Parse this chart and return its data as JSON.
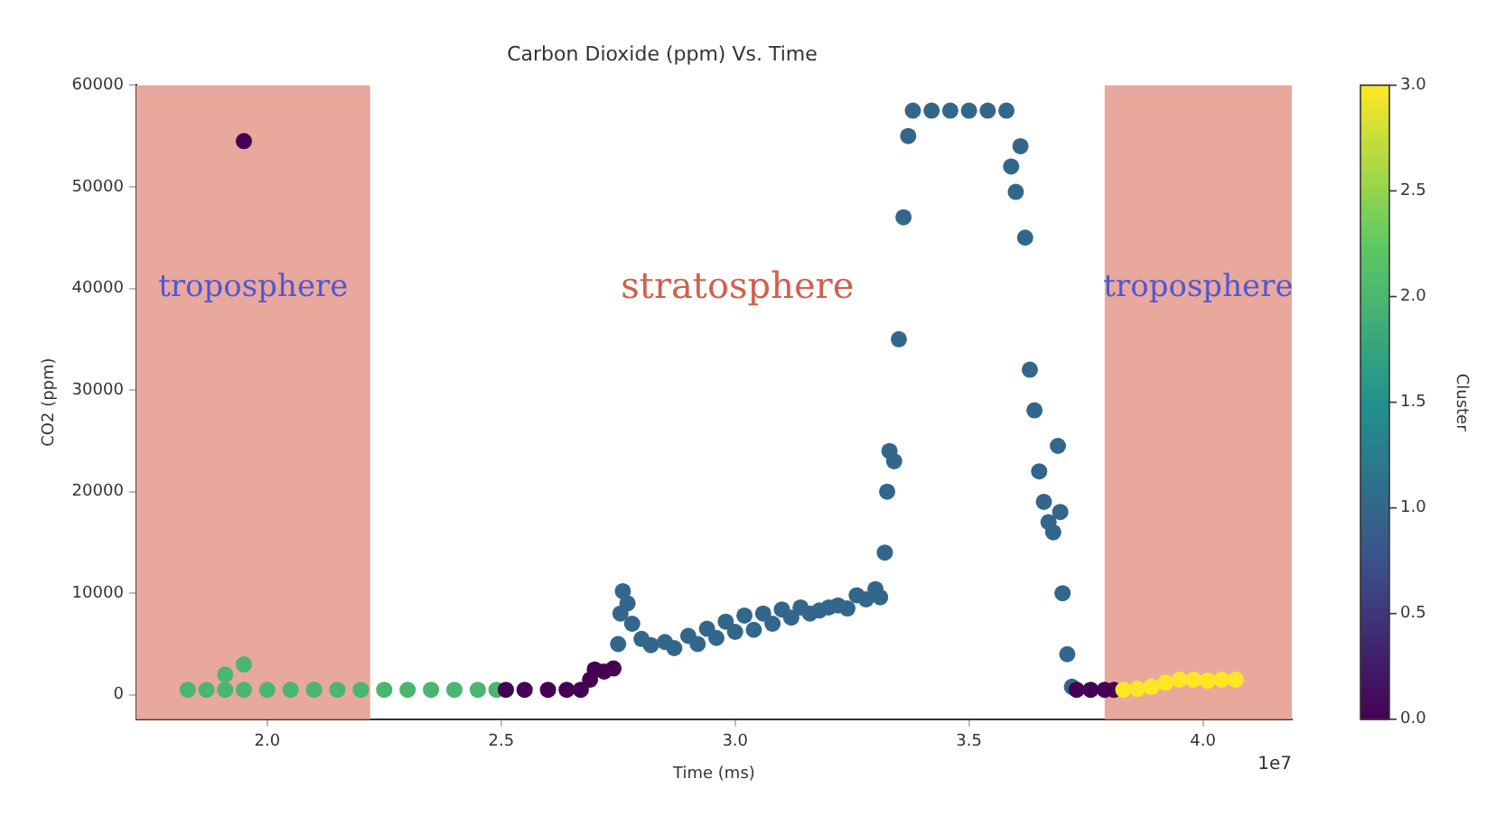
{
  "chart_data": {
    "type": "scatter",
    "title": "Carbon Dioxide (ppm) Vs. Time",
    "xlabel": "Time (ms)",
    "ylabel": "CO2 (ppm)",
    "clabel": "Cluster",
    "x": [
      1.83,
      1.87,
      1.91,
      1.95,
      2.0,
      2.05,
      2.1,
      2.15,
      2.2,
      2.25,
      2.3,
      2.35,
      2.4,
      2.45,
      2.49,
      1.91,
      1.95,
      1.95,
      2.51,
      2.55,
      2.6,
      2.64,
      2.67,
      2.69,
      2.7,
      2.72,
      2.74,
      2.75,
      2.755,
      2.76,
      2.77,
      2.78,
      2.8,
      2.82,
      2.85,
      2.87,
      2.9,
      2.92,
      2.94,
      2.96,
      2.98,
      3.0,
      3.02,
      3.04,
      3.06,
      3.08,
      3.1,
      3.12,
      3.14,
      3.16,
      3.18,
      3.2,
      3.22,
      3.24,
      3.26,
      3.28,
      3.3,
      3.31,
      3.32,
      3.325,
      3.33,
      3.34,
      3.35,
      3.36,
      3.37,
      3.38,
      3.42,
      3.46,
      3.5,
      3.54,
      3.58,
      3.59,
      3.6,
      3.61,
      3.62,
      3.63,
      3.64,
      3.65,
      3.66,
      3.67,
      3.68,
      3.69,
      3.695,
      3.7,
      3.71,
      3.72,
      3.73,
      3.76,
      3.79,
      3.81,
      3.83,
      3.86,
      3.89,
      3.92,
      3.95,
      3.98,
      4.01,
      4.04,
      4.07
    ],
    "values": [
      500,
      500,
      500,
      500,
      500,
      500,
      500,
      500,
      500,
      500,
      500,
      500,
      500,
      500,
      500,
      2000,
      3000,
      54500,
      500,
      500,
      500,
      500,
      500,
      1500,
      2500,
      2300,
      2600,
      5000,
      8000,
      10200,
      9000,
      7000,
      5500,
      4900,
      5200,
      4600,
      5800,
      5000,
      6500,
      5600,
      7200,
      6200,
      7800,
      6400,
      8000,
      7000,
      8400,
      7600,
      8600,
      8000,
      8300,
      8600,
      8800,
      8500,
      9800,
      9400,
      10400,
      9600,
      14000,
      20000,
      24000,
      23000,
      35000,
      47000,
      55000,
      57500,
      57500,
      57500,
      57500,
      57500,
      57500,
      52000,
      49500,
      54000,
      45000,
      32000,
      28000,
      22000,
      19000,
      17000,
      16000,
      24500,
      18000,
      10000,
      4000,
      800,
      500,
      500,
      500,
      500,
      500,
      600,
      800,
      1200,
      1500,
      1500,
      1400,
      1500,
      1500
    ],
    "cvalues": [
      2,
      2,
      2,
      2,
      2,
      2,
      2,
      2,
      2,
      2,
      2,
      2,
      2,
      2,
      2,
      2,
      2,
      0,
      0,
      0,
      0,
      0,
      0,
      0,
      0,
      0,
      0,
      1,
      1,
      1,
      1,
      1,
      1,
      1,
      1,
      1,
      1,
      1,
      1,
      1,
      1,
      1,
      1,
      1,
      1,
      1,
      1,
      1,
      1,
      1,
      1,
      1,
      1,
      1,
      1,
      1,
      1,
      1,
      1,
      1,
      1,
      1,
      1,
      1,
      1,
      1,
      1,
      1,
      1,
      1,
      1,
      1,
      1,
      1,
      1,
      1,
      1,
      1,
      1,
      1,
      1,
      1,
      1,
      1,
      1,
      1,
      0,
      0,
      0,
      0,
      3,
      3,
      3,
      3,
      3,
      3,
      3,
      3,
      3
    ],
    "xlim": [
      1.72,
      4.19
    ],
    "xticks": [
      {
        "value": 2,
        "label": "2.0"
      },
      {
        "value": 2.5,
        "label": "2.5"
      },
      {
        "value": 3,
        "label": "3.0"
      },
      {
        "value": 3.5,
        "label": "3.5"
      },
      {
        "value": 4,
        "label": "4.0"
      }
    ],
    "ylim": [
      -2400,
      60000
    ],
    "yticks": [
      0,
      10000,
      20000,
      30000,
      40000,
      50000,
      60000
    ],
    "clim": [
      0,
      3
    ],
    "cticks": [
      {
        "value": 0,
        "label": "0.0"
      },
      {
        "value": 0.5,
        "label": "0.5"
      },
      {
        "value": 1,
        "label": "1.0"
      },
      {
        "value": 1.5,
        "label": "1.5"
      },
      {
        "value": 2,
        "label": "2.0"
      },
      {
        "value": 2.5,
        "label": "2.5"
      },
      {
        "value": 3,
        "label": "3.0"
      }
    ],
    "bands": [
      {
        "axis": "x",
        "from": 1.72,
        "to": 2.22,
        "label": "troposphere",
        "color": "#e9a89c"
      },
      {
        "axis": "x",
        "from": 3.79,
        "to": 4.19,
        "label": "troposphere",
        "color": "#e9a89c"
      }
    ],
    "annotations": [
      "stratosphere",
      "1e7"
    ],
    "marker": "circle",
    "grid": false,
    "legend": false
  }
}
